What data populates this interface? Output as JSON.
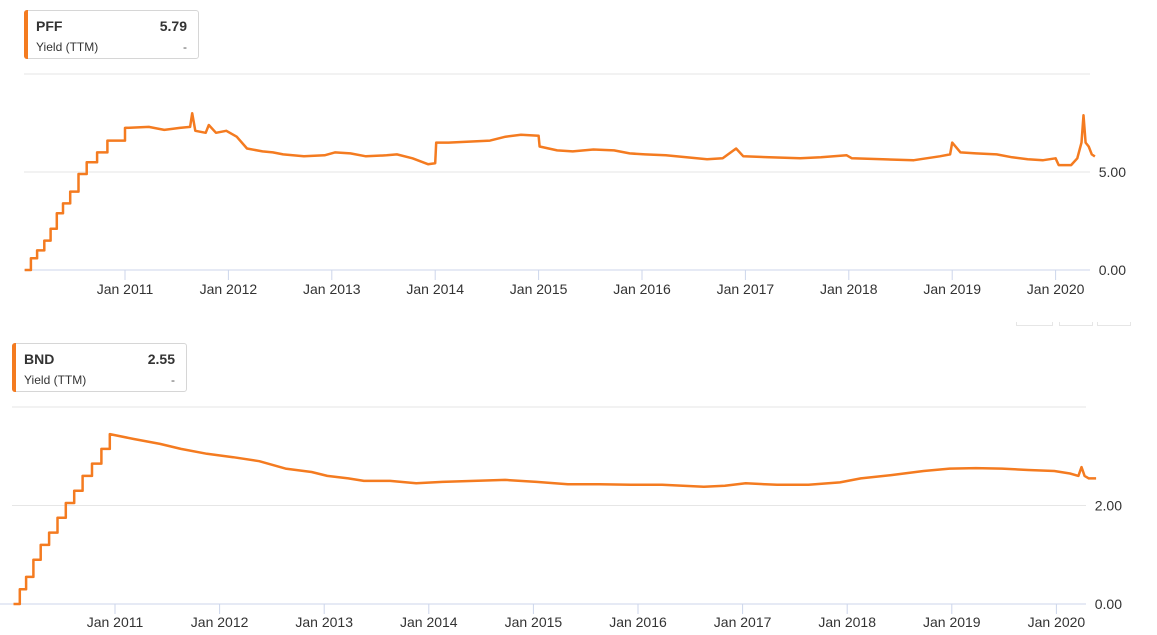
{
  "colors": {
    "series": "#f47b20",
    "grid": "#e6e6e6",
    "axis": "#ccd6eb",
    "text": "#333333"
  },
  "legends": [
    {
      "ticker": "PFF",
      "value": "5.79",
      "metric": "Yield (TTM)",
      "change": "-"
    },
    {
      "ticker": "BND",
      "value": "2.55",
      "metric": "Yield (TTM)",
      "change": "-"
    }
  ],
  "chart_data": [
    {
      "type": "line",
      "series": [
        {
          "name": "PFF",
          "points": [
            [
              2010.0,
              0.0
            ],
            [
              2010.06,
              0.0
            ],
            [
              2010.06,
              0.6
            ],
            [
              2010.12,
              0.6
            ],
            [
              2010.12,
              1.0
            ],
            [
              2010.19,
              1.0
            ],
            [
              2010.19,
              1.5
            ],
            [
              2010.25,
              1.5
            ],
            [
              2010.25,
              2.1
            ],
            [
              2010.31,
              2.1
            ],
            [
              2010.31,
              2.9
            ],
            [
              2010.37,
              2.9
            ],
            [
              2010.37,
              3.4
            ],
            [
              2010.44,
              3.4
            ],
            [
              2010.44,
              4.0
            ],
            [
              2010.52,
              4.0
            ],
            [
              2010.52,
              4.9
            ],
            [
              2010.6,
              4.9
            ],
            [
              2010.6,
              5.5
            ],
            [
              2010.7,
              5.5
            ],
            [
              2010.7,
              6.0
            ],
            [
              2010.8,
              6.0
            ],
            [
              2010.8,
              6.6
            ],
            [
              2010.97,
              6.6
            ],
            [
              2010.97,
              7.25
            ],
            [
              2011.2,
              7.3
            ],
            [
              2011.35,
              7.15
            ],
            [
              2011.5,
              7.25
            ],
            [
              2011.6,
              7.3
            ],
            [
              2011.62,
              8.0
            ],
            [
              2011.65,
              7.1
            ],
            [
              2011.75,
              7.0
            ],
            [
              2011.78,
              7.4
            ],
            [
              2011.85,
              7.0
            ],
            [
              2011.95,
              7.1
            ],
            [
              2012.05,
              6.8
            ],
            [
              2012.15,
              6.2
            ],
            [
              2012.3,
              6.05
            ],
            [
              2012.4,
              6.0
            ],
            [
              2012.5,
              5.9
            ],
            [
              2012.7,
              5.8
            ],
            [
              2012.9,
              5.85
            ],
            [
              2013.0,
              6.0
            ],
            [
              2013.15,
              5.95
            ],
            [
              2013.3,
              5.8
            ],
            [
              2013.5,
              5.85
            ],
            [
              2013.6,
              5.9
            ],
            [
              2013.75,
              5.7
            ],
            [
              2013.9,
              5.4
            ],
            [
              2013.97,
              5.45
            ],
            [
              2013.98,
              6.5
            ],
            [
              2014.1,
              6.5
            ],
            [
              2014.3,
              6.55
            ],
            [
              2014.5,
              6.6
            ],
            [
              2014.65,
              6.8
            ],
            [
              2014.8,
              6.9
            ],
            [
              2014.97,
              6.85
            ],
            [
              2014.98,
              6.3
            ],
            [
              2015.15,
              6.1
            ],
            [
              2015.3,
              6.05
            ],
            [
              2015.5,
              6.15
            ],
            [
              2015.7,
              6.1
            ],
            [
              2015.85,
              5.95
            ],
            [
              2016.0,
              5.9
            ],
            [
              2016.2,
              5.85
            ],
            [
              2016.4,
              5.75
            ],
            [
              2016.6,
              5.65
            ],
            [
              2016.75,
              5.7
            ],
            [
              2016.88,
              6.2
            ],
            [
              2016.95,
              5.8
            ],
            [
              2017.2,
              5.75
            ],
            [
              2017.5,
              5.7
            ],
            [
              2017.7,
              5.75
            ],
            [
              2017.95,
              5.85
            ],
            [
              2018.0,
              5.7
            ],
            [
              2018.3,
              5.65
            ],
            [
              2018.6,
              5.6
            ],
            [
              2018.85,
              5.8
            ],
            [
              2018.95,
              5.9
            ],
            [
              2018.97,
              6.5
            ],
            [
              2019.05,
              6.0
            ],
            [
              2019.2,
              5.95
            ],
            [
              2019.4,
              5.9
            ],
            [
              2019.55,
              5.75
            ],
            [
              2019.7,
              5.65
            ],
            [
              2019.85,
              5.6
            ],
            [
              2019.97,
              5.7
            ],
            [
              2020.0,
              5.35
            ],
            [
              2020.12,
              5.35
            ],
            [
              2020.18,
              5.7
            ],
            [
              2020.22,
              6.5
            ],
            [
              2020.24,
              7.9
            ],
            [
              2020.26,
              6.5
            ],
            [
              2020.29,
              6.3
            ],
            [
              2020.32,
              5.9
            ],
            [
              2020.35,
              5.79
            ]
          ]
        }
      ],
      "x_ticks": [
        "Jan 2011",
        "Jan 2012",
        "Jan 2013",
        "Jan 2014",
        "Jan 2015",
        "Jan 2016",
        "Jan 2017",
        "Jan 2018",
        "Jan 2019",
        "Jan 2020"
      ],
      "y_ticks": [
        "0.00",
        "5.00"
      ],
      "ylim": [
        0,
        10
      ],
      "xlim": [
        2010.0,
        2020.35
      ]
    },
    {
      "type": "line",
      "series": [
        {
          "name": "BND",
          "points": [
            [
              2010.0,
              0.0
            ],
            [
              2010.06,
              0.0
            ],
            [
              2010.06,
              0.3
            ],
            [
              2010.12,
              0.3
            ],
            [
              2010.12,
              0.55
            ],
            [
              2010.19,
              0.55
            ],
            [
              2010.19,
              0.9
            ],
            [
              2010.26,
              0.9
            ],
            [
              2010.26,
              1.2
            ],
            [
              2010.34,
              1.2
            ],
            [
              2010.34,
              1.45
            ],
            [
              2010.42,
              1.45
            ],
            [
              2010.42,
              1.75
            ],
            [
              2010.5,
              1.75
            ],
            [
              2010.5,
              2.05
            ],
            [
              2010.58,
              2.05
            ],
            [
              2010.58,
              2.3
            ],
            [
              2010.66,
              2.3
            ],
            [
              2010.66,
              2.6
            ],
            [
              2010.75,
              2.6
            ],
            [
              2010.75,
              2.85
            ],
            [
              2010.84,
              2.85
            ],
            [
              2010.84,
              3.15
            ],
            [
              2010.92,
              3.15
            ],
            [
              2010.92,
              3.45
            ],
            [
              2011.15,
              3.35
            ],
            [
              2011.4,
              3.25
            ],
            [
              2011.6,
              3.15
            ],
            [
              2011.85,
              3.05
            ],
            [
              2012.1,
              2.98
            ],
            [
              2012.35,
              2.9
            ],
            [
              2012.6,
              2.75
            ],
            [
              2012.85,
              2.68
            ],
            [
              2013.0,
              2.6
            ],
            [
              2013.2,
              2.55
            ],
            [
              2013.35,
              2.5
            ],
            [
              2013.6,
              2.5
            ],
            [
              2013.85,
              2.45
            ],
            [
              2014.1,
              2.48
            ],
            [
              2014.4,
              2.5
            ],
            [
              2014.7,
              2.52
            ],
            [
              2015.0,
              2.48
            ],
            [
              2015.3,
              2.43
            ],
            [
              2015.6,
              2.43
            ],
            [
              2015.9,
              2.42
            ],
            [
              2016.2,
              2.42
            ],
            [
              2016.4,
              2.4
            ],
            [
              2016.6,
              2.38
            ],
            [
              2016.8,
              2.4
            ],
            [
              2017.0,
              2.45
            ],
            [
              2017.3,
              2.42
            ],
            [
              2017.6,
              2.42
            ],
            [
              2017.9,
              2.47
            ],
            [
              2018.1,
              2.55
            ],
            [
              2018.4,
              2.62
            ],
            [
              2018.7,
              2.7
            ],
            [
              2018.95,
              2.75
            ],
            [
              2019.2,
              2.76
            ],
            [
              2019.45,
              2.75
            ],
            [
              2019.7,
              2.72
            ],
            [
              2019.95,
              2.7
            ],
            [
              2020.1,
              2.65
            ],
            [
              2020.18,
              2.6
            ],
            [
              2020.21,
              2.78
            ],
            [
              2020.24,
              2.6
            ],
            [
              2020.28,
              2.55
            ],
            [
              2020.35,
              2.55
            ]
          ]
        }
      ],
      "x_ticks": [
        "Jan 2011",
        "Jan 2012",
        "Jan 2013",
        "Jan 2014",
        "Jan 2015",
        "Jan 2016",
        "Jan 2017",
        "Jan 2018",
        "Jan 2019",
        "Jan 2020"
      ],
      "y_ticks": [
        "0.00",
        "2.00"
      ],
      "ylim": [
        0,
        4
      ],
      "xlim": [
        2010.0,
        2020.35
      ]
    }
  ]
}
